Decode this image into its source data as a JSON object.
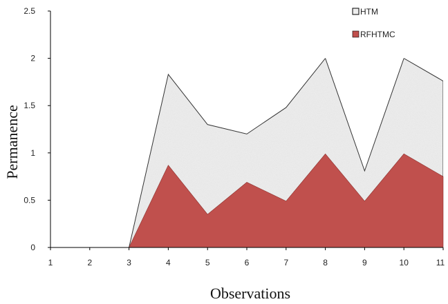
{
  "chart_data": {
    "type": "area",
    "title": "",
    "xlabel": "Observations",
    "ylabel": "Permanence",
    "x": [
      1,
      2,
      3,
      4,
      5,
      6,
      7,
      8,
      9,
      10,
      11
    ],
    "ylim": [
      0,
      2.5
    ],
    "yticks": [
      "0",
      "0.5",
      "1",
      "1.5",
      "2",
      "2.5"
    ],
    "xticks": [
      "1",
      "2",
      "3",
      "4",
      "5",
      "6",
      "7",
      "8",
      "9",
      "10",
      "11"
    ],
    "grid": false,
    "legend_position": "top-right",
    "series": [
      {
        "name": "HTM",
        "values": [
          0,
          0,
          0,
          1.83,
          1.3,
          1.2,
          1.48,
          2.0,
          0.81,
          2.0,
          1.76
        ],
        "color": "#eeeeee"
      },
      {
        "name": "RFHTMC",
        "values": [
          0,
          0,
          0,
          0.87,
          0.35,
          0.69,
          0.49,
          0.99,
          0.49,
          0.99,
          0.75
        ],
        "color": "#c0504d"
      }
    ]
  }
}
